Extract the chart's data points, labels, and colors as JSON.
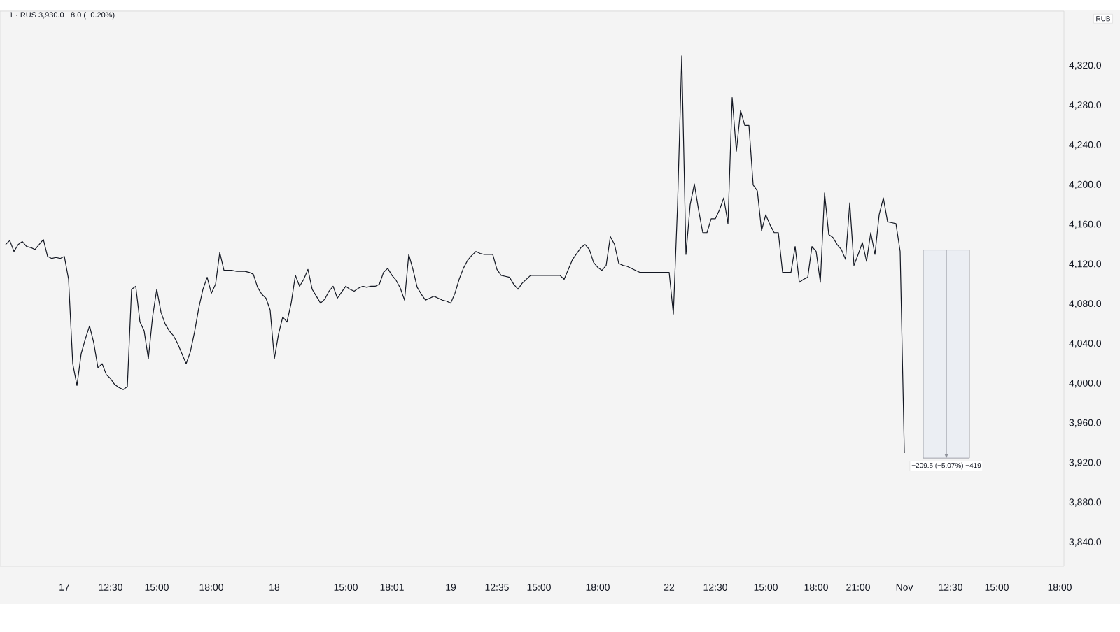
{
  "chart_data": {
    "type": "line",
    "title": "1 · RUS 3,930.0 −8.0 (−0.20%)",
    "ylabel": "RUB",
    "categories": [
      null,
      null,
      null,
      null,
      null,
      null,
      null,
      null,
      null,
      null,
      null,
      null,
      null,
      null,
      "17",
      null,
      null,
      null,
      null,
      null,
      null,
      null,
      null,
      null,
      null,
      "12:30",
      null,
      null,
      null,
      null,
      null,
      null,
      null,
      null,
      null,
      null,
      "15:00",
      null,
      null,
      null,
      null,
      null,
      null,
      null,
      null,
      null,
      null,
      null,
      null,
      "18:00",
      null,
      null,
      null,
      null,
      null,
      null,
      null,
      null,
      null,
      null,
      null,
      null,
      null,
      null,
      "18",
      null,
      null,
      null,
      null,
      null,
      null,
      null,
      null,
      null,
      null,
      null,
      null,
      null,
      null,
      null,
      null,
      "15:00",
      null,
      null,
      null,
      null,
      null,
      null,
      null,
      null,
      null,
      null,
      "18:01",
      null,
      null,
      null,
      null,
      null,
      null,
      null,
      null,
      null,
      null,
      null,
      null,
      null,
      "19",
      null,
      null,
      null,
      null,
      null,
      null,
      null,
      null,
      null,
      null,
      "12:35",
      null,
      null,
      null,
      null,
      null,
      null,
      null,
      null,
      null,
      "15:00",
      null,
      null,
      null,
      null,
      null,
      null,
      null,
      null,
      null,
      null,
      null,
      null,
      null,
      "18:00",
      null,
      null,
      null,
      null,
      null,
      null,
      null,
      null,
      null,
      null,
      null,
      null,
      null,
      null,
      null,
      null,
      "22",
      null,
      null,
      null,
      null,
      null,
      null,
      null,
      null,
      null,
      null,
      "12:30",
      null,
      null,
      null,
      null,
      null,
      null,
      null,
      null,
      null,
      null,
      null,
      "15:00",
      null,
      null,
      null,
      null,
      null,
      null,
      null,
      null,
      null,
      null,
      null,
      "18:00",
      null,
      null,
      null,
      null,
      null,
      null,
      null,
      null,
      null,
      "21:00",
      null,
      null,
      null,
      null,
      null,
      null,
      null,
      null,
      null,
      null,
      "Nov",
      null,
      null,
      null,
      null,
      null,
      null,
      null,
      null,
      null,
      null,
      "12:30",
      null,
      null,
      null,
      null,
      null,
      null,
      null,
      null,
      null,
      null,
      "15:00",
      null,
      null,
      null,
      null,
      null,
      null,
      null,
      null,
      null,
      null,
      null,
      null,
      null,
      null,
      "18:00",
      null
    ],
    "ylim": [
      3816,
      4375
    ],
    "yticks": [
      {
        "value": 3840,
        "label": "3,840.0"
      },
      {
        "value": 3880,
        "label": "3,880.0"
      },
      {
        "value": 3920,
        "label": "3,920.0"
      },
      {
        "value": 3960,
        "label": "3,960.0"
      },
      {
        "value": 4000,
        "label": "4,000.0"
      },
      {
        "value": 4040,
        "label": "4,040.0"
      },
      {
        "value": 4080,
        "label": "4,080.0"
      },
      {
        "value": 4120,
        "label": "4,120.0"
      },
      {
        "value": 4160,
        "label": "4,160.0"
      },
      {
        "value": 4200,
        "label": "4,200.0"
      },
      {
        "value": 4240,
        "label": "4,240.0"
      },
      {
        "value": 4280,
        "label": "4,280.0"
      },
      {
        "value": 4320,
        "label": "4,320.0"
      }
    ],
    "bands": [
      {
        "axis": "y",
        "from": 4134.5,
        "to": 3925,
        "label": "−209.5 (−5.07%) −419",
        "color": "#ebeef3"
      }
    ],
    "series": [
      {
        "color": "#131722",
        "values": [
          4140,
          4144,
          4133,
          4140,
          4143,
          4138,
          4137,
          4135,
          4140,
          4145,
          4128,
          4126,
          4127,
          4126,
          4128,
          4105,
          4020,
          3998,
          4030,
          4045,
          4058,
          4041,
          4016,
          4020,
          4009,
          4005,
          3999,
          3996,
          3994,
          3997,
          4095,
          4098,
          4062,
          4053,
          4025,
          4067,
          4095,
          4072,
          4060,
          4053,
          4048,
          4040,
          4030,
          4020,
          4032,
          4052,
          4076,
          4095,
          4107,
          4091,
          4100,
          4132,
          4114,
          4114,
          4114,
          4113,
          4113,
          4113,
          4112,
          4110,
          4097,
          4090,
          4086,
          4074,
          4025,
          4050,
          4067,
          4062,
          4081,
          4109,
          4098,
          4105,
          4115,
          4095,
          4088,
          4081,
          4085,
          4093,
          4098,
          4086,
          4092,
          4098,
          4095,
          4093,
          4096,
          4098,
          4097,
          4098,
          4098,
          4100,
          4112,
          4116,
          4109,
          4104,
          4096,
          4084,
          4130,
          4115,
          4097,
          4090,
          4084,
          4086,
          4088,
          4086,
          4084,
          4083,
          4081,
          4091,
          4105,
          4116,
          4124,
          4129,
          4133,
          4131,
          4130,
          4130,
          4130,
          4115,
          4109,
          4108,
          4107,
          4100,
          4095,
          4101,
          4105,
          4109,
          4109,
          4109,
          4109,
          4109,
          4109,
          4109,
          4109,
          4105,
          4115,
          4125,
          4131,
          4137,
          4140,
          4135,
          4122,
          4117,
          4114,
          4119,
          4148,
          4140,
          4121,
          4119,
          4118,
          4116,
          4114,
          4112,
          4112,
          4112,
          4112,
          4112,
          4112,
          4112,
          4112,
          4070,
          4180,
          4330,
          4130,
          4180,
          4201,
          4175,
          4152,
          4152,
          4166,
          4166,
          4175,
          4187,
          4161,
          4288,
          4234,
          4275,
          4260,
          4260,
          4200,
          4194,
          4154,
          4170,
          4160,
          4152,
          4152,
          4112,
          4112,
          4112,
          4138,
          4102,
          4105,
          4107,
          4138,
          4133,
          4102,
          4192,
          4150,
          4147,
          4140,
          4135,
          4125,
          4182,
          4119,
          4130,
          4142,
          4123,
          4152,
          4130,
          4170,
          4187,
          4163,
          4162,
          4161,
          4133,
          3930,
          null,
          null,
          null,
          null,
          null,
          null,
          null,
          null,
          null,
          null,
          null,
          null,
          null,
          null,
          null,
          null,
          null,
          null,
          null,
          null,
          null,
          null,
          null,
          null,
          null,
          null,
          null,
          null,
          null,
          null,
          null,
          null,
          null,
          null,
          null,
          null,
          null,
          null
        ]
      }
    ]
  }
}
